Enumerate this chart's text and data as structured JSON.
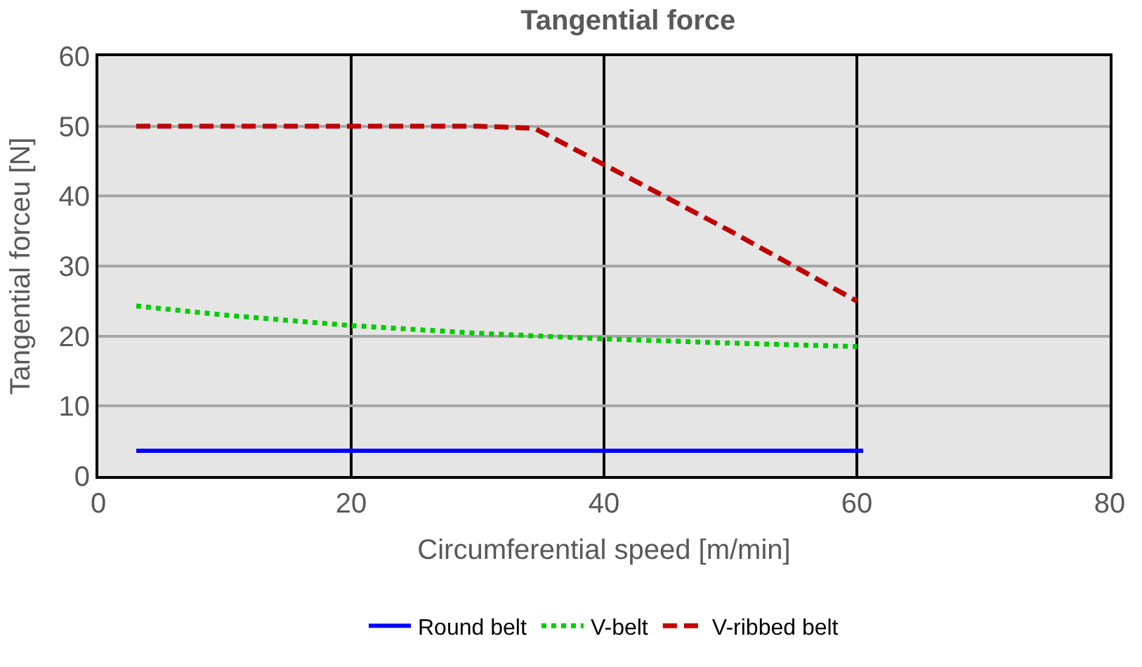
{
  "chart_data": {
    "type": "line",
    "title": "Tangential force",
    "xlabel": "Circumferential speed [m/min]",
    "ylabel": "Tangential forceu [N]",
    "xlim": [
      0,
      80
    ],
    "xticks": [
      0,
      20,
      40,
      60,
      80
    ],
    "ylim": [
      0,
      60
    ],
    "yticks": [
      0,
      10,
      20,
      30,
      40,
      50,
      60
    ],
    "grid": true,
    "legend": "bottom",
    "marker": "none",
    "series": [
      {
        "name": "Round belt",
        "color": "#0000ff",
        "line_style": "solid",
        "x": [
          3,
          60.5
        ],
        "values": [
          3.6,
          3.6
        ]
      },
      {
        "name": "V-belt",
        "color": "#00cc00",
        "line_style": "dotted",
        "x": [
          3,
          10,
          20,
          30,
          40,
          50,
          60
        ],
        "values": [
          24.3,
          23,
          21.5,
          20.4,
          19.6,
          19,
          18.5
        ]
      },
      {
        "name": "V-ribbed belt",
        "color": "#c00000",
        "line_style": "dashed",
        "x": [
          3,
          20,
          30,
          34.5,
          40,
          50,
          60
        ],
        "values": [
          50,
          50,
          50,
          49.7,
          44.5,
          35,
          25
        ]
      }
    ]
  }
}
